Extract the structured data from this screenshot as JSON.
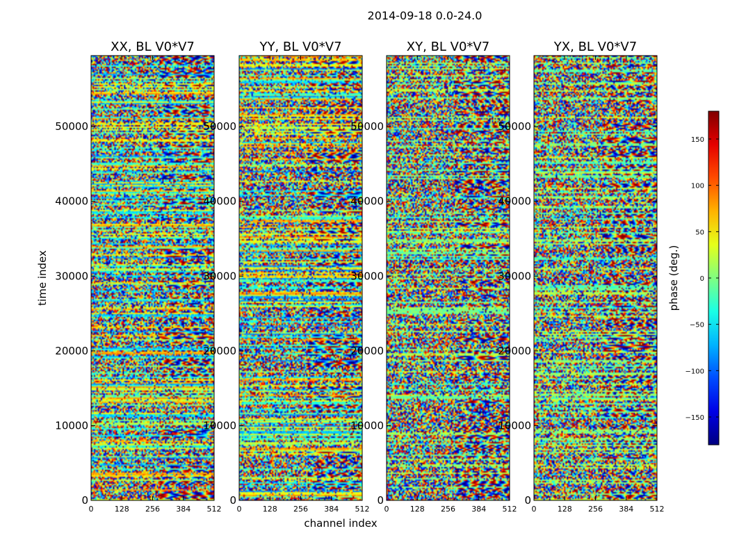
{
  "figure_title": "2014-09-18 0.0-24.0",
  "chart_data": {
    "type": "heatmap",
    "title": "2014-09-18 0.0-24.0",
    "xlabel": "channel index",
    "ylabel": "time index",
    "xlim": [
      0,
      512
    ],
    "ylim": [
      0,
      59500
    ],
    "x_ticks": [
      0,
      128,
      256,
      384,
      512
    ],
    "x_tick_labels": [
      "0",
      "128",
      "256",
      "384",
      "512"
    ],
    "y_ticks": [
      0,
      10000,
      20000,
      30000,
      40000,
      50000
    ],
    "y_tick_labels": [
      "0",
      "10000",
      "20000",
      "30000",
      "40000",
      "50000"
    ],
    "panels": [
      {
        "title": "XX, BL V0*V7",
        "polarization": "XX",
        "baseline": "V0*V7"
      },
      {
        "title": "YY, BL V0*V7",
        "polarization": "YY",
        "baseline": "V0*V7"
      },
      {
        "title": "XY, BL V0*V7",
        "polarization": "XY",
        "baseline": "V0*V7"
      },
      {
        "title": "YX, BL V0*V7",
        "polarization": "YX",
        "baseline": "V0*V7"
      }
    ],
    "colorbar": {
      "label": "phase (deg.)",
      "range": [
        -180,
        180
      ],
      "ticks": [
        -150,
        -100,
        -50,
        0,
        50,
        100,
        150
      ],
      "tick_labels": [
        "−150",
        "−100",
        "−50",
        "0",
        "50",
        "100",
        "150"
      ],
      "colormap": "jet"
    }
  },
  "colors": {
    "jet_dark_blue": "#00007f",
    "jet_blue": "#0000ff",
    "jet_cyan": "#00ffff",
    "jet_green": "#7fff7f",
    "jet_yellow": "#ffff00",
    "jet_red": "#ff0000",
    "jet_dark_red": "#7f0000"
  }
}
